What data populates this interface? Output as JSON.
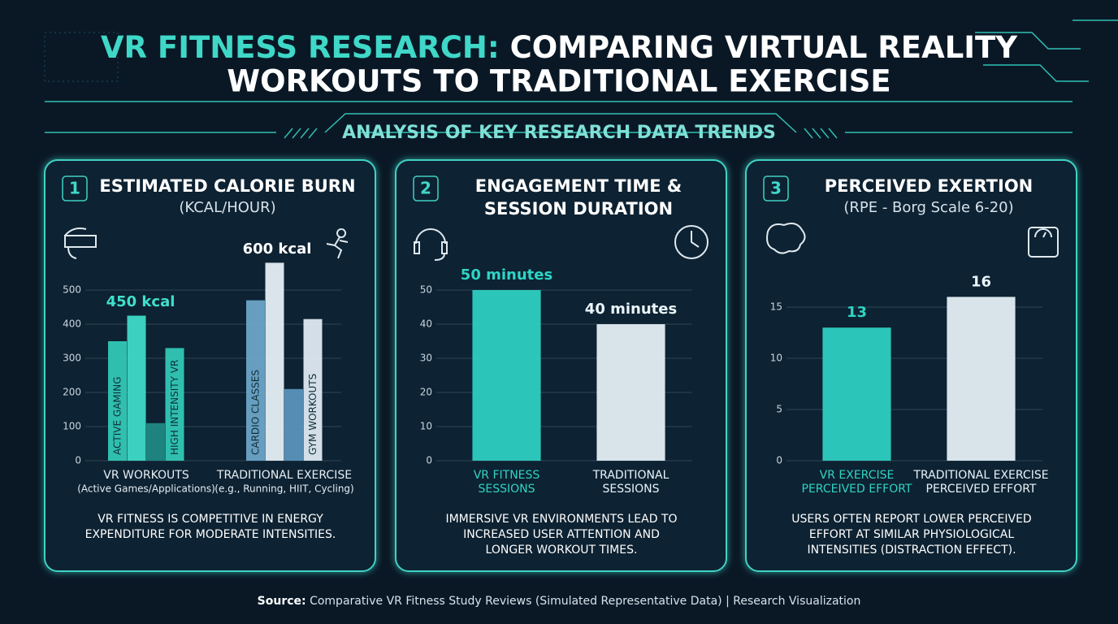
{
  "header": {
    "title": {
      "highlight": "VR FITNESS RESEARCH:",
      "lines": [
        "COMPARING VIRTUAL REALITY",
        "WORKOUTS TO TRADITIONAL EXERCISE"
      ]
    },
    "subtitle": "ANALYSIS OF KEY RESEARCH DATA TRENDS"
  },
  "chart_data": [
    {
      "type": "grouped_bar",
      "number": "1",
      "title": [
        "ESTIMATED CALORIE BURN"
      ],
      "subtitle": "(KCAL/HOUR)",
      "ylim": [
        0,
        600
      ],
      "yticks": [
        0,
        100,
        200,
        300,
        400,
        500
      ],
      "grid": true,
      "groups": [
        {
          "label": [
            "VR WORKOUTS",
            "(Active Games/Applications)"
          ],
          "bars": [
            {
              "label": "ACTIVE GAMING",
              "value": 350,
              "color": "#33cdb9"
            },
            {
              "label": null,
              "value": 425,
              "color": "#3fe0cc"
            },
            {
              "label": null,
              "value": 110,
              "color": "#1f8c86"
            },
            {
              "label": "HIGH INTENSITY VR",
              "value": 330,
              "color": "#33cdb9"
            }
          ]
        },
        {
          "label": [
            "TRADITIONAL EXERCISE",
            "(e.g., Running, HIIT, Cycling)"
          ],
          "bars": [
            {
              "label": "CARDIO CLASSES",
              "value": 470,
              "color": "#6fa9cc"
            },
            {
              "label": null,
              "value": 580,
              "color": "#eaf5fb"
            },
            {
              "label": null,
              "value": 210,
              "color": "#5b97bf"
            },
            {
              "label": "GYM WORKOUTS",
              "value": 415,
              "color": "#e4eff7"
            }
          ]
        }
      ],
      "annotations": [
        "450 kcal",
        "600 kcal"
      ],
      "note": [
        "VR FITNESS IS COMPETITIVE IN ENERGY",
        "EXPENDITURE FOR MODERATE INTENSITIES."
      ]
    },
    {
      "type": "bar",
      "number": "2",
      "title": [
        "ENGAGEMENT TIME &",
        "SESSION DURATION"
      ],
      "ylim": [
        0,
        60
      ],
      "yticks": [
        0,
        10,
        20,
        30,
        40,
        50
      ],
      "grid": true,
      "categories": [
        [
          "VR FITNESS",
          "SESSIONS"
        ],
        [
          "TRADITIONAL",
          "SESSIONS"
        ]
      ],
      "values": [
        50,
        40
      ],
      "value_labels": [
        "50 minutes",
        "40 minutes"
      ],
      "colors": [
        "#2fd4c4",
        "#e9f4fa"
      ],
      "note": [
        "IMMERSIVE VR ENVIRONMENTS LEAD TO",
        "INCREASED USER ATTENTION AND",
        "LONGER WORKOUT TIMES."
      ]
    },
    {
      "type": "bar",
      "number": "3",
      "title": [
        "PERCEIVED EXERTION"
      ],
      "subtitle": "(RPE - Borg Scale 6-20)",
      "ylim": [
        0,
        20
      ],
      "yticks": [
        0,
        5,
        10,
        15
      ],
      "grid": true,
      "categories": [
        [
          "VR EXERCISE",
          "PERCEIVED EFFORT"
        ],
        [
          "TRADITIONAL EXERCISE",
          "PERCEIVED EFFORT"
        ]
      ],
      "values": [
        13,
        16
      ],
      "colors": [
        "#2fd4c4",
        "#e9f4fa"
      ],
      "note": [
        "USERS OFTEN REPORT LOWER PERCEIVED",
        "EFFORT AT SIMILAR PHYSIOLOGICAL",
        "INTENSITIES (DISTRACTION EFFECT)."
      ]
    }
  ],
  "source": {
    "label": "Source:",
    "text": "Comparative VR Fitness Study Reviews (Simulated Representative Data) | Research Visualization"
  }
}
